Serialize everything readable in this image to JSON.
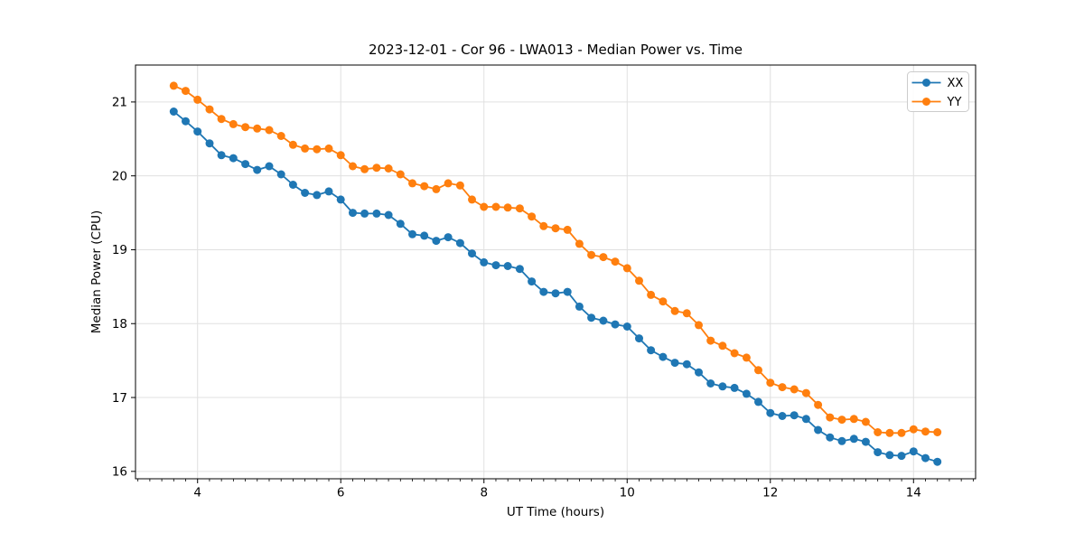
{
  "figure": {
    "background": "#ffffff"
  },
  "chart_data": {
    "type": "line",
    "title": "2023-12-01 - Cor 96 - LWA013 - Median Power vs. Time",
    "xlabel": "UT Time (hours)",
    "ylabel": "Median Power (CPU)",
    "xlim": [
      3.133,
      14.867
    ],
    "ylim": [
      15.9,
      21.5
    ],
    "x_ticks": [
      4,
      6,
      8,
      10,
      12,
      14
    ],
    "y_ticks": [
      16,
      17,
      18,
      19,
      20,
      21
    ],
    "x_minor_tick_step": 0.16667,
    "grid": true,
    "legend_position": "upper right",
    "marker": "o",
    "x": [
      3.667,
      3.833,
      4.0,
      4.167,
      4.333,
      4.5,
      4.667,
      4.833,
      5.0,
      5.167,
      5.333,
      5.5,
      5.667,
      5.833,
      6.0,
      6.167,
      6.333,
      6.5,
      6.667,
      6.833,
      7.0,
      7.167,
      7.333,
      7.5,
      7.667,
      7.833,
      8.0,
      8.167,
      8.333,
      8.5,
      8.667,
      8.833,
      9.0,
      9.167,
      9.333,
      9.5,
      9.667,
      9.833,
      10.0,
      10.167,
      10.333,
      10.5,
      10.667,
      10.833,
      11.0,
      11.167,
      11.333,
      11.5,
      11.667,
      11.833,
      12.0,
      12.167,
      12.333,
      12.5,
      12.667,
      12.833,
      13.0,
      13.167,
      13.333,
      13.5,
      13.667,
      13.833,
      14.0,
      14.167,
      14.333
    ],
    "series": [
      {
        "name": "XX",
        "color": "#1f77b4",
        "values": [
          20.87,
          20.74,
          20.6,
          20.44,
          20.28,
          20.24,
          20.16,
          20.08,
          20.13,
          20.02,
          19.88,
          19.77,
          19.74,
          19.79,
          19.68,
          19.5,
          19.49,
          19.49,
          19.47,
          19.35,
          19.21,
          19.19,
          19.12,
          19.17,
          19.09,
          18.95,
          18.83,
          18.79,
          18.78,
          18.74,
          18.57,
          18.43,
          18.41,
          18.43,
          18.23,
          18.08,
          18.04,
          17.99,
          17.96,
          17.8,
          17.64,
          17.55,
          17.47,
          17.45,
          17.34,
          17.19,
          17.15,
          17.13,
          17.05,
          16.94,
          16.79,
          16.75,
          16.76,
          16.71,
          16.56,
          16.46,
          16.41,
          16.44,
          16.4,
          16.26,
          16.22,
          16.21,
          16.27,
          16.18,
          16.13
        ]
      },
      {
        "name": "YY",
        "color": "#ff7f0e",
        "values": [
          21.22,
          21.15,
          21.03,
          20.9,
          20.77,
          20.7,
          20.66,
          20.64,
          20.62,
          20.54,
          20.42,
          20.37,
          20.36,
          20.37,
          20.28,
          20.13,
          20.09,
          20.11,
          20.1,
          20.02,
          19.9,
          19.86,
          19.82,
          19.9,
          19.87,
          19.68,
          19.58,
          19.58,
          19.57,
          19.56,
          19.45,
          19.32,
          19.29,
          19.27,
          19.08,
          18.93,
          18.9,
          18.84,
          18.75,
          18.58,
          18.39,
          18.3,
          18.17,
          18.14,
          17.98,
          17.77,
          17.7,
          17.6,
          17.54,
          17.37,
          17.2,
          17.14,
          17.11,
          17.06,
          16.9,
          16.73,
          16.7,
          16.71,
          16.67,
          16.53,
          16.52,
          16.52,
          16.57,
          16.54,
          16.53
        ]
      }
    ]
  },
  "colors": {
    "grid": "#e0e0e0",
    "spine": "#000000",
    "tick": "#000000",
    "text": "#000000",
    "legend_border": "#cccccc",
    "legend_background": "#ffffff"
  }
}
